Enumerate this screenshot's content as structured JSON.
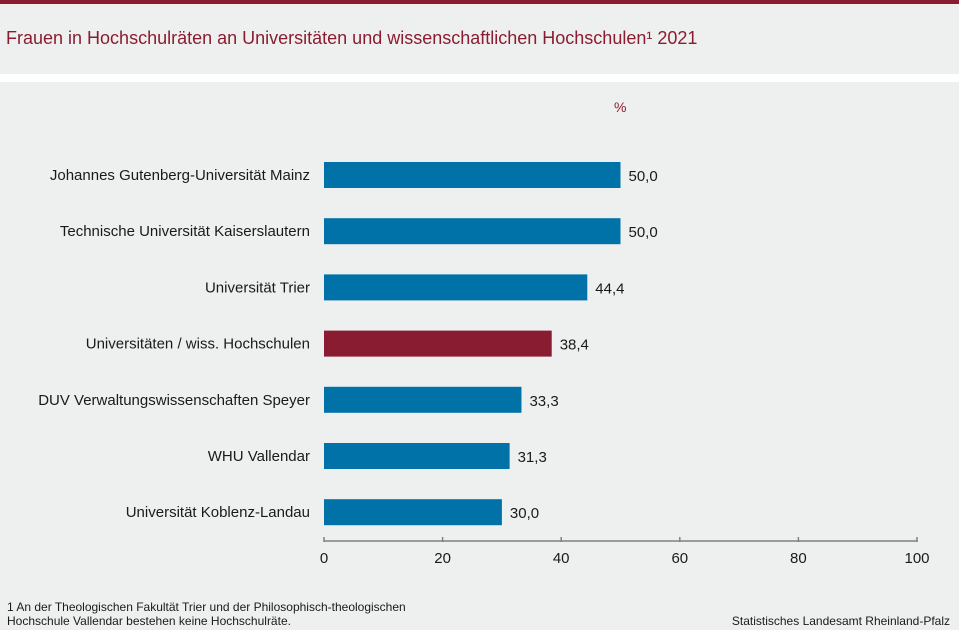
{
  "header": {
    "title": "Frauen in Hochschulräten an Universitäten und wissenschaftlichen Hochschulen¹ 2021"
  },
  "footer": {
    "footnote_line1": "1 An der Theologischen  Fakultät Trier und der Philosophisch-theologischen",
    "footnote_line2": "Hochschule Vallendar bestehen keine Hochschulräte.",
    "source": "Statistisches Landesamt Rheinland-Pfalz"
  },
  "chart_data": {
    "type": "bar",
    "orientation": "horizontal",
    "title": "Frauen in Hochschulräten an Universitäten und wissenschaftlichen Hochschulen¹ 2021",
    "unit_label": "%",
    "xlabel": "",
    "ylabel": "",
    "xlim": [
      0,
      100
    ],
    "xticks": [
      0,
      20,
      40,
      60,
      80,
      100
    ],
    "xtick_labels": [
      "0",
      "20",
      "40",
      "60",
      "80",
      "100"
    ],
    "grid": false,
    "categories": [
      "Johannes Gutenberg-Universität Mainz",
      "Technische Universität Kaiserslautern",
      "Universität Trier",
      "Universitäten / wiss. Hochschulen",
      "DUV Verwaltungswissenschaften Speyer",
      "WHU Vallendar",
      "Universität Koblenz-Landau"
    ],
    "values": [
      50.0,
      50.0,
      44.4,
      38.4,
      33.3,
      31.3,
      30.0
    ],
    "value_labels": [
      "50,0",
      "50,0",
      "44,4",
      "38,4",
      "33,3",
      "31,3",
      "30,0"
    ],
    "highlight_index": 3,
    "colors": {
      "bar": "#0072a8",
      "highlight": "#8a1c32",
      "axis": "#808080"
    }
  }
}
